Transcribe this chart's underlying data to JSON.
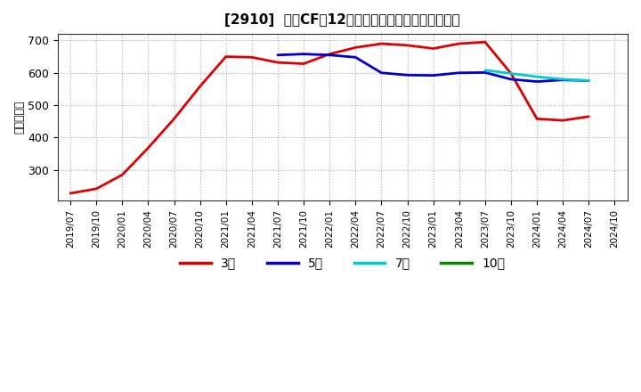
{
  "title": "[2910]  営業CFの12か月移動合計の標準偏差の推移",
  "ylabel": "（百万円）",
  "ylim": [
    205,
    720
  ],
  "yticks": [
    300,
    400,
    500,
    600,
    700
  ],
  "x_labels": [
    "2019/07",
    "2019/10",
    "2020/01",
    "2020/04",
    "2020/07",
    "2020/10",
    "2021/01",
    "2021/04",
    "2021/07",
    "2021/10",
    "2022/01",
    "2022/04",
    "2022/07",
    "2022/10",
    "2023/01",
    "2023/04",
    "2023/07",
    "2023/10",
    "2024/01",
    "2024/04",
    "2024/07",
    "2024/10"
  ],
  "series": {
    "3年": {
      "color": "#dd0000",
      "data_x": [
        0,
        1,
        2,
        3,
        4,
        5,
        6,
        7,
        8,
        9,
        10,
        11,
        12,
        13,
        14,
        15,
        16,
        17,
        18,
        19,
        20
      ],
      "data_y": [
        228,
        242,
        285,
        368,
        458,
        558,
        650,
        648,
        632,
        628,
        658,
        678,
        690,
        685,
        675,
        690,
        695,
        598,
        458,
        453,
        465
      ]
    },
    "5年": {
      "color": "#0000cc",
      "data_x": [
        8,
        9,
        10,
        11,
        12,
        13,
        14,
        15,
        16,
        17,
        18,
        19,
        20
      ],
      "data_y": [
        655,
        658,
        655,
        648,
        600,
        593,
        592,
        600,
        601,
        580,
        573,
        578,
        576
      ]
    },
    "7年": {
      "color": "#00cccc",
      "data_x": [
        16,
        17,
        18,
        19,
        20
      ],
      "data_y": [
        608,
        598,
        588,
        580,
        576
      ]
    },
    "10年": {
      "color": "#008800",
      "data_x": [],
      "data_y": []
    }
  },
  "legend_labels": [
    "3年",
    "5年",
    "7年",
    "10年"
  ],
  "legend_colors": [
    "#dd0000",
    "#0000cc",
    "#00cccc",
    "#008800"
  ],
  "background_color": "#ffffff",
  "grid_color": "#999999"
}
